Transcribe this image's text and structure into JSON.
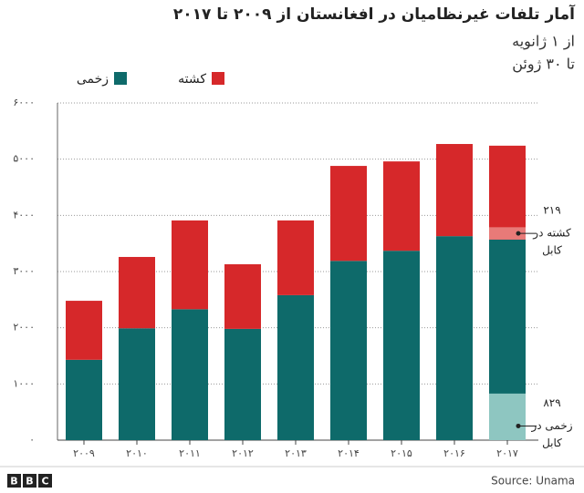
{
  "chart_data": {
    "type": "bar",
    "stacked": true,
    "title": "آمار تلفات غیرنظامیان در افغانستان از ۲۰۰۹ تا ۲۰۱۷",
    "subtitle": [
      "از ۱ ژانویه",
      "تا ۳۰ ژوئن"
    ],
    "categories": [
      "۲۰۰۹",
      "۲۰۱۰",
      "۲۰۱۱",
      "۲۰۱۲",
      "۲۰۱۳",
      "۲۰۱۴",
      "۲۰۱۵",
      "۲۰۱۶",
      "۲۰۱۷"
    ],
    "series": [
      {
        "name": "زخمی",
        "color": "#0e6a6a",
        "values": [
          1430,
          1990,
          2330,
          1980,
          2580,
          3190,
          3370,
          3630,
          3570
        ],
        "highlight": {
          "value": 829,
          "value_label": "۸۲۹",
          "label": [
            "زخمی در",
            "کابل"
          ],
          "color": "#8ec6c1"
        }
      },
      {
        "name": "کشته",
        "color": "#d6282a",
        "values": [
          1050,
          1270,
          1580,
          1150,
          1330,
          1690,
          1590,
          1640,
          1670
        ],
        "highlight": {
          "value": 219,
          "value_label": "۲۱۹",
          "label": [
            "کشته در",
            "کابل"
          ],
          "color": "#e87a78"
        }
      }
    ],
    "ylim": [
      0,
      6000
    ],
    "yticks": [
      {
        "value": 0,
        "label": "۰"
      },
      {
        "value": 1000,
        "label": "۱۰۰۰"
      },
      {
        "value": 2000,
        "label": "۲۰۰۰"
      },
      {
        "value": 3000,
        "label": "۳۰۰۰"
      },
      {
        "value": 4000,
        "label": "۴۰۰۰"
      },
      {
        "value": 5000,
        "label": "۵۰۰۰"
      },
      {
        "value": 6000,
        "label": "۶۰۰۰"
      }
    ],
    "grid": true,
    "source": "Source: Unama",
    "logo": [
      "B",
      "B",
      "C"
    ]
  }
}
